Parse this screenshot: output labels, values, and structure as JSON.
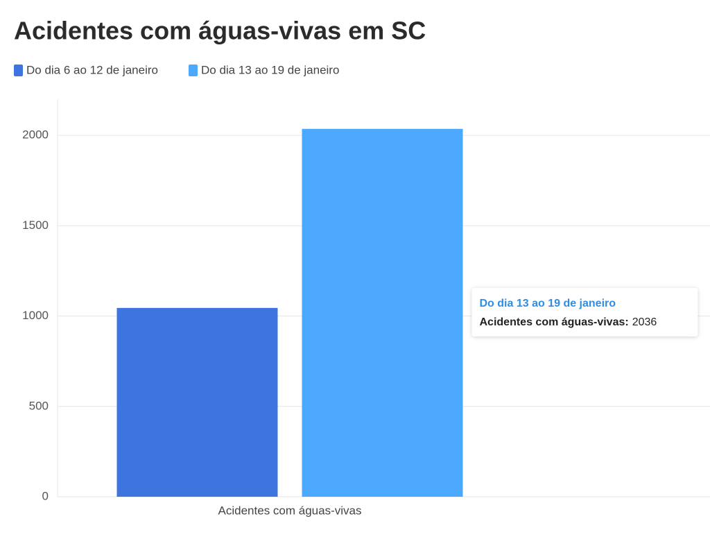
{
  "chart_data": {
    "type": "bar",
    "title": "Acidentes com águas-vivas em SC",
    "categories": [
      "Acidentes com águas-vivas"
    ],
    "series": [
      {
        "name": "Do dia 6 ao 12 de janeiro",
        "color": "#3d74de",
        "values": [
          1045
        ]
      },
      {
        "name": "Do dia 13 ao 19 de janeiro",
        "color": "#4ba8fd",
        "values": [
          2036
        ]
      }
    ],
    "ylim": [
      0,
      2200
    ],
    "yticks": [
      0,
      500,
      1000,
      1500,
      2000
    ],
    "grid": true,
    "tooltip": {
      "label": "Acidentes com águas-vivas:"
    }
  }
}
